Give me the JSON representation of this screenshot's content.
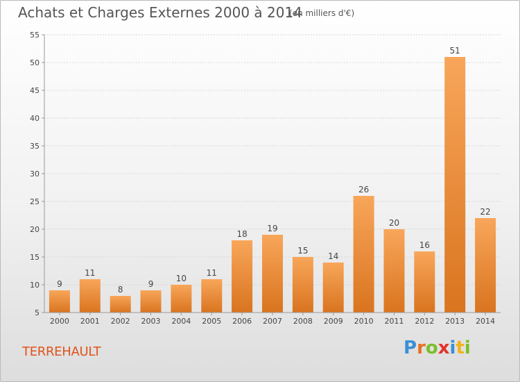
{
  "title": "Achats et Charges Externes 2000 à 2014",
  "subtitle": "(en milliers d'€)",
  "commune": "TERREHAULT",
  "brand": {
    "letters": [
      {
        "ch": "P",
        "color": "#3a8fd6"
      },
      {
        "ch": "r",
        "color": "#e86f1f"
      },
      {
        "ch": "o",
        "color": "#7bbf2a"
      },
      {
        "ch": "x",
        "color": "#e2332a"
      },
      {
        "ch": "i",
        "color": "#3a8fd6"
      },
      {
        "ch": "t",
        "color": "#f2b21a"
      },
      {
        "ch": "i",
        "color": "#7bbf2a"
      }
    ]
  },
  "colors": {
    "bar_light": "#f8a65a",
    "bar_dark": "#d9741f",
    "axis": "#999999",
    "grid": "#d6d6d6",
    "text": "#444444"
  },
  "chart_data": {
    "type": "bar",
    "categories": [
      "2000",
      "2001",
      "2002",
      "2003",
      "2004",
      "2005",
      "2006",
      "2007",
      "2008",
      "2009",
      "2010",
      "2011",
      "2012",
      "2013",
      "2014"
    ],
    "values": [
      9,
      11,
      8,
      9,
      10,
      11,
      18,
      19,
      15,
      14,
      26,
      20,
      16,
      51,
      22
    ],
    "ylim": [
      5,
      55
    ],
    "yticks": [
      5,
      10,
      15,
      20,
      25,
      30,
      35,
      40,
      45,
      50,
      55
    ],
    "grid": true,
    "legend": "none"
  }
}
